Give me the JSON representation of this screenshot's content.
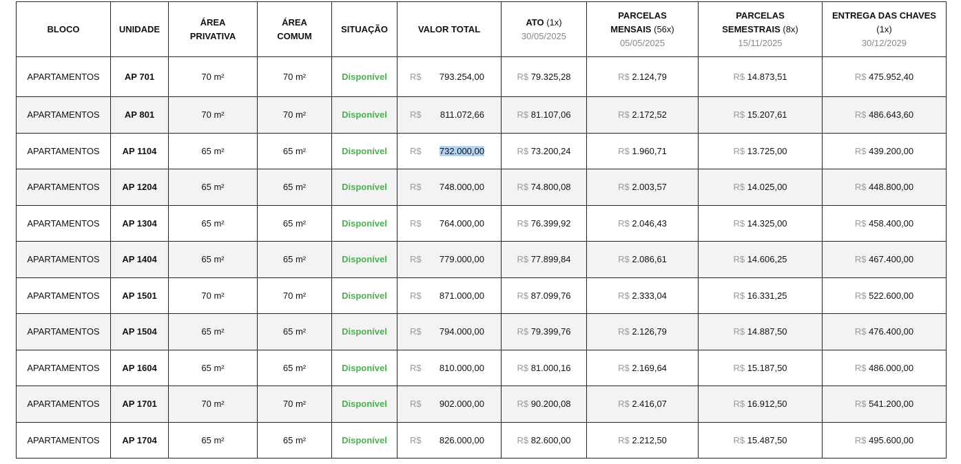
{
  "currency": "R$",
  "header": [
    {
      "title": "BLOCO"
    },
    {
      "title": "UNIDADE"
    },
    {
      "title": "ÁREA PRIVATIVA"
    },
    {
      "title": "ÁREA COMUM"
    },
    {
      "title": "SITUAÇÃO"
    },
    {
      "title": "VALOR TOTAL"
    },
    {
      "title": "ATO",
      "count": "(1x)",
      "date": "30/05/2025"
    },
    {
      "title": "PARCELAS MENSAIS",
      "count": "(56x)",
      "date": "05/05/2025"
    },
    {
      "title": "PARCELAS SEMESTRAIS",
      "count": "(8x)",
      "date": "15/11/2025"
    },
    {
      "title": "ENTREGA DAS CHAVES",
      "count": "(1x)",
      "date": "30/12/2029"
    }
  ],
  "rows": [
    [
      "APARTAMENTOS",
      "AP 701",
      "70 m²",
      "70 m²",
      "Disponível",
      "793.254,00",
      "79.325,28",
      "2.124,79",
      "14.873,51",
      "475.952,40"
    ],
    [
      "APARTAMENTOS",
      "AP 801",
      "70 m²",
      "70 m²",
      "Disponível",
      "811.072,66",
      "81.107,06",
      "2.172,52",
      "15.207,61",
      "486.643,60"
    ],
    [
      "APARTAMENTOS",
      "AP 1104",
      "65 m²",
      "65 m²",
      "Disponível",
      "732.000,00",
      "73.200,24",
      "1.960,71",
      "13.725,00",
      "439.200,00"
    ],
    [
      "APARTAMENTOS",
      "AP 1204",
      "65 m²",
      "65 m²",
      "Disponível",
      "748.000,00",
      "74.800,08",
      "2.003,57",
      "14.025,00",
      "448.800,00"
    ],
    [
      "APARTAMENTOS",
      "AP 1304",
      "65 m²",
      "65 m²",
      "Disponível",
      "764.000,00",
      "76.399,92",
      "2.046,43",
      "14.325,00",
      "458.400,00"
    ],
    [
      "APARTAMENTOS",
      "AP 1404",
      "65 m²",
      "65 m²",
      "Disponível",
      "779.000,00",
      "77.899,84",
      "2.086,61",
      "14.606,25",
      "467.400,00"
    ],
    [
      "APARTAMENTOS",
      "AP 1501",
      "70 m²",
      "70 m²",
      "Disponível",
      "871.000,00",
      "87.099,76",
      "2.333,04",
      "16.331,25",
      "522.600,00"
    ],
    [
      "APARTAMENTOS",
      "AP 1504",
      "65 m²",
      "65 m²",
      "Disponível",
      "794.000,00",
      "79.399,76",
      "2.126,79",
      "14.887,50",
      "476.400,00"
    ],
    [
      "APARTAMENTOS",
      "AP 1604",
      "65 m²",
      "65 m²",
      "Disponível",
      "810.000,00",
      "81.000,16",
      "2.169,64",
      "15.187,50",
      "486.000,00"
    ],
    [
      "APARTAMENTOS",
      "AP 1701",
      "70 m²",
      "70 m²",
      "Disponível",
      "902.000,00",
      "90.200,08",
      "2.416,07",
      "16.912,50",
      "541.200,00"
    ],
    [
      "APARTAMENTOS",
      "AP 1704",
      "65 m²",
      "65 m²",
      "Disponível",
      "826.000,00",
      "82.600,00",
      "2.212,50",
      "15.487,50",
      "495.600,00"
    ]
  ]
}
